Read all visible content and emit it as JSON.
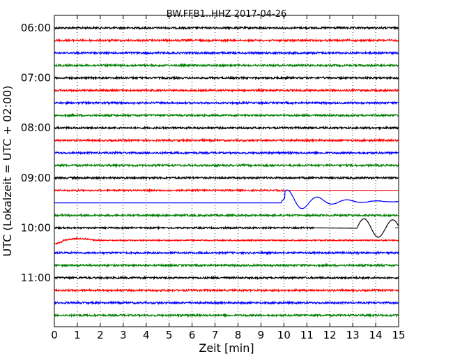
{
  "chart_data": {
    "type": "line",
    "title": "BW.FFB1..HHZ 2017-04-26",
    "xlabel": "Zeit  [min]",
    "ylabel": "UTC (Lokalzeit = UTC + 02:00)",
    "xlim": [
      0,
      15
    ],
    "x_ticks": [
      "0",
      "1",
      "2",
      "3",
      "4",
      "5",
      "6",
      "7",
      "8",
      "9",
      "10",
      "11",
      "12",
      "13",
      "14",
      "15"
    ],
    "y_ticks": [
      {
        "label": "06:00",
        "trace_index": 0
      },
      {
        "label": "07:00",
        "trace_index": 4
      },
      {
        "label": "08:00",
        "trace_index": 8
      },
      {
        "label": "09:00",
        "trace_index": 12
      },
      {
        "label": "10:00",
        "trace_index": 16
      },
      {
        "label": "11:00",
        "trace_index": 20
      }
    ],
    "grid": {
      "x": true,
      "y": false,
      "style": "dotted"
    },
    "trace_interval_min": 15,
    "colors": [
      "#000000",
      "#ff0000",
      "#0000ff",
      "#008000"
    ],
    "traces": [
      {
        "start": "06:00",
        "color": "#000000",
        "kind": "noise"
      },
      {
        "start": "06:15",
        "color": "#ff0000",
        "kind": "noise"
      },
      {
        "start": "06:30",
        "color": "#0000ff",
        "kind": "noise"
      },
      {
        "start": "06:45",
        "color": "#008000",
        "kind": "noise"
      },
      {
        "start": "07:00",
        "color": "#000000",
        "kind": "noise"
      },
      {
        "start": "07:15",
        "color": "#ff0000",
        "kind": "noise"
      },
      {
        "start": "07:30",
        "color": "#0000ff",
        "kind": "noise"
      },
      {
        "start": "07:45",
        "color": "#008000",
        "kind": "noise"
      },
      {
        "start": "08:00",
        "color": "#000000",
        "kind": "noise"
      },
      {
        "start": "08:15",
        "color": "#ff0000",
        "kind": "noise"
      },
      {
        "start": "08:30",
        "color": "#0000ff",
        "kind": "noise"
      },
      {
        "start": "08:45",
        "color": "#008000",
        "kind": "noise"
      },
      {
        "start": "09:00",
        "color": "#000000",
        "kind": "noise"
      },
      {
        "start": "09:15",
        "color": "#ff0000",
        "kind": "noise_then_flat",
        "flat_from_min": 10.0
      },
      {
        "start": "09:30",
        "color": "#0000ff",
        "kind": "flat_then_oscillation",
        "event_min": 9.9
      },
      {
        "start": "09:45",
        "color": "#008000",
        "kind": "noise"
      },
      {
        "start": "10:00",
        "color": "#000000",
        "kind": "noise_flat_oscillation",
        "flat_from_min": 11.3,
        "event_min": 13.2
      },
      {
        "start": "10:15",
        "color": "#ff0000",
        "kind": "recovery_then_noise"
      },
      {
        "start": "10:30",
        "color": "#0000ff",
        "kind": "noise"
      },
      {
        "start": "10:45",
        "color": "#008000",
        "kind": "noise"
      },
      {
        "start": "11:00",
        "color": "#000000",
        "kind": "noise"
      },
      {
        "start": "11:15",
        "color": "#ff0000",
        "kind": "noise"
      },
      {
        "start": "11:30",
        "color": "#0000ff",
        "kind": "noise"
      },
      {
        "start": "11:45",
        "color": "#008000",
        "kind": "noise"
      }
    ]
  }
}
